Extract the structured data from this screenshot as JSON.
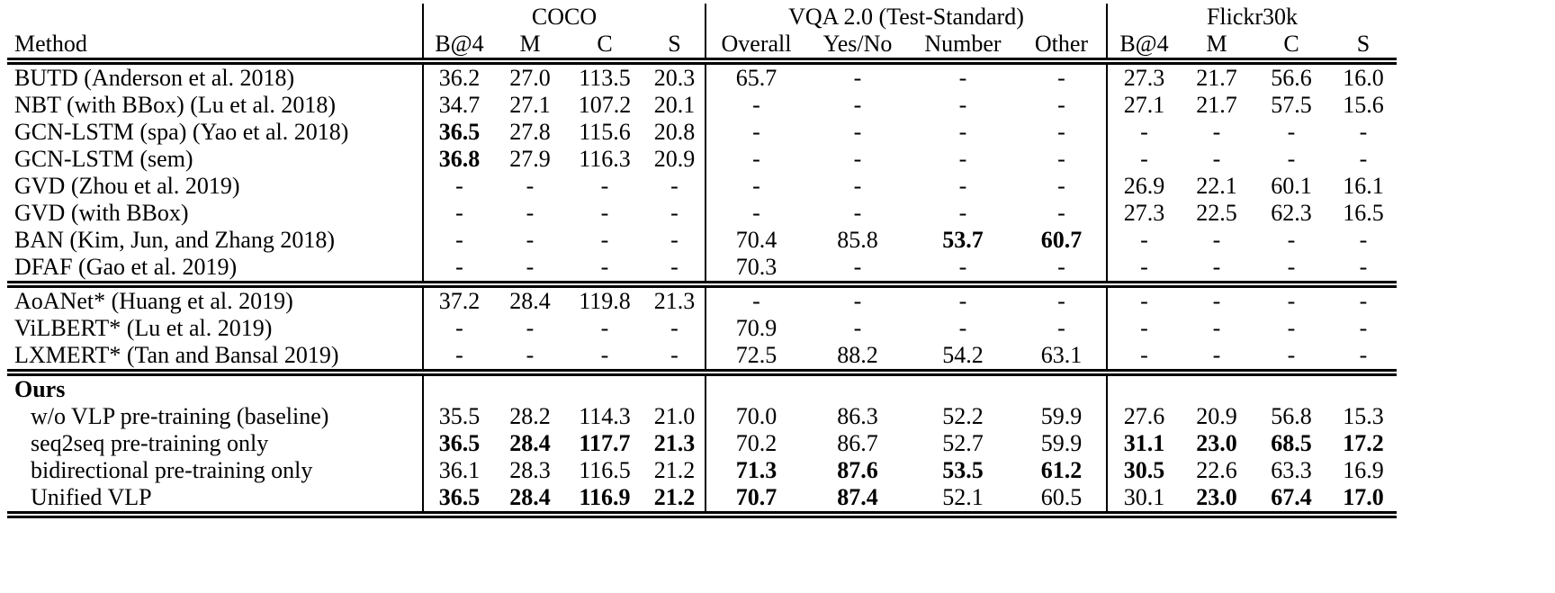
{
  "table": {
    "column_groups": [
      {
        "label": "",
        "span": 1,
        "sep": false
      },
      {
        "label": "COCO",
        "span": 4,
        "sep": true
      },
      {
        "label": "VQA 2.0 (Test-Standard)",
        "span": 4,
        "sep": true
      },
      {
        "label": "Flickr30k",
        "span": 4,
        "sep": true
      }
    ],
    "columns": [
      {
        "label": "Method",
        "sep": false
      },
      {
        "label": "B@4",
        "sep": true
      },
      {
        "label": "M",
        "sep": false
      },
      {
        "label": "C",
        "sep": false
      },
      {
        "label": "S",
        "sep": false
      },
      {
        "label": "Overall",
        "sep": true
      },
      {
        "label": "Yes/No",
        "sep": false
      },
      {
        "label": "Number",
        "sep": false
      },
      {
        "label": "Other",
        "sep": false
      },
      {
        "label": "B@4",
        "sep": true
      },
      {
        "label": "M",
        "sep": false
      },
      {
        "label": "C",
        "sep": false
      },
      {
        "label": "S",
        "sep": false
      }
    ],
    "groups": [
      {
        "rows": [
          {
            "method": "BUTD (Anderson et al. 2018)",
            "cells": [
              "36.2",
              "27.0",
              "113.5",
              "20.3",
              "65.7",
              "-",
              "-",
              "-",
              "27.3",
              "21.7",
              "56.6",
              "16.0"
            ],
            "bold": []
          },
          {
            "method": "NBT (with BBox) (Lu et al. 2018)",
            "cells": [
              "34.7",
              "27.1",
              "107.2",
              "20.1",
              "-",
              "-",
              "-",
              "-",
              "27.1",
              "21.7",
              "57.5",
              "15.6"
            ],
            "bold": []
          },
          {
            "method": "GCN-LSTM (spa) (Yao et al. 2018)",
            "cells": [
              "36.5",
              "27.8",
              "115.6",
              "20.8",
              "-",
              "-",
              "-",
              "-",
              "-",
              "-",
              "-",
              "-"
            ],
            "bold": [
              0
            ]
          },
          {
            "method": "GCN-LSTM (sem)",
            "cells": [
              "36.8",
              "27.9",
              "116.3",
              "20.9",
              "-",
              "-",
              "-",
              "-",
              "-",
              "-",
              "-",
              "-"
            ],
            "bold": [
              0
            ]
          },
          {
            "method": "GVD (Zhou et al. 2019)",
            "cells": [
              "-",
              "-",
              "-",
              "-",
              "-",
              "-",
              "-",
              "-",
              "26.9",
              "22.1",
              "60.1",
              "16.1"
            ],
            "bold": []
          },
          {
            "method": "GVD (with BBox)",
            "cells": [
              "-",
              "-",
              "-",
              "-",
              "-",
              "-",
              "-",
              "-",
              "27.3",
              "22.5",
              "62.3",
              "16.5"
            ],
            "bold": []
          },
          {
            "method": "BAN (Kim, Jun, and Zhang 2018)",
            "cells": [
              "-",
              "-",
              "-",
              "-",
              "70.4",
              "85.8",
              "53.7",
              "60.7",
              "-",
              "-",
              "-",
              "-"
            ],
            "bold": [
              6,
              7
            ]
          },
          {
            "method": "DFAF (Gao et al. 2019)",
            "cells": [
              "-",
              "-",
              "-",
              "-",
              "70.3",
              "-",
              "-",
              "-",
              "-",
              "-",
              "-",
              "-"
            ],
            "bold": []
          }
        ]
      },
      {
        "rows": [
          {
            "method": "AoANet* (Huang et al. 2019)",
            "cells": [
              "37.2",
              "28.4",
              "119.8",
              "21.3",
              "-",
              "-",
              "-",
              "-",
              "-",
              "-",
              "-",
              "-"
            ],
            "bold": []
          },
          {
            "method": "ViLBERT* (Lu et al. 2019)",
            "cells": [
              "-",
              "-",
              "-",
              "-",
              "70.9",
              "-",
              "-",
              "-",
              "-",
              "-",
              "-",
              "-"
            ],
            "bold": []
          },
          {
            "method": "LXMERT* (Tan and Bansal 2019)",
            "cells": [
              "-",
              "-",
              "-",
              "-",
              "72.5",
              "88.2",
              "54.2",
              "63.1",
              "-",
              "-",
              "-",
              "-"
            ],
            "bold": []
          }
        ]
      },
      {
        "header": "Ours",
        "rows": [
          {
            "method": "w/o VLP pre-training (baseline)",
            "indent": true,
            "cells": [
              "35.5",
              "28.2",
              "114.3",
              "21.0",
              "70.0",
              "86.3",
              "52.2",
              "59.9",
              "27.6",
              "20.9",
              "56.8",
              "15.3"
            ],
            "bold": []
          },
          {
            "method": "seq2seq pre-training only",
            "indent": true,
            "cells": [
              "36.5",
              "28.4",
              "117.7",
              "21.3",
              "70.2",
              "86.7",
              "52.7",
              "59.9",
              "31.1",
              "23.0",
              "68.5",
              "17.2"
            ],
            "bold": [
              0,
              1,
              2,
              3,
              8,
              9,
              10,
              11
            ]
          },
          {
            "method": "bidirectional pre-training only",
            "indent": true,
            "cells": [
              "36.1",
              "28.3",
              "116.5",
              "21.2",
              "71.3",
              "87.6",
              "53.5",
              "61.2",
              "30.5",
              "22.6",
              "63.3",
              "16.9"
            ],
            "bold": [
              4,
              5,
              6,
              7,
              8
            ]
          },
          {
            "method": "Unified VLP",
            "indent": true,
            "cells": [
              "36.5",
              "28.4",
              "116.9",
              "21.2",
              "70.7",
              "87.4",
              "52.1",
              "60.5",
              "30.1",
              "23.0",
              "67.4",
              "17.0"
            ],
            "bold": [
              0,
              1,
              2,
              3,
              4,
              5,
              9,
              10,
              11
            ]
          }
        ]
      }
    ]
  }
}
